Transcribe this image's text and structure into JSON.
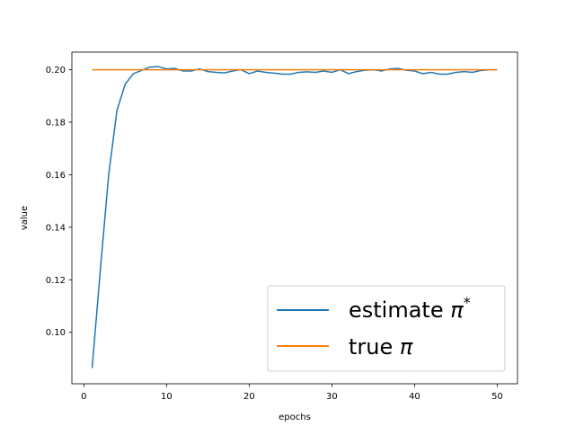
{
  "chart_data": {
    "type": "line",
    "title": "",
    "xlabel": "epochs",
    "ylabel": "value",
    "xlim": [
      -1.45,
      52.45
    ],
    "ylim": [
      0.0804,
      0.2067
    ],
    "xticks": [
      0,
      10,
      20,
      30,
      40,
      50
    ],
    "xtick_labels": [
      "0",
      "10",
      "20",
      "30",
      "40",
      "50"
    ],
    "yticks": [
      0.1,
      0.12,
      0.14,
      0.16,
      0.18,
      0.2
    ],
    "ytick_labels": [
      "0.10",
      "0.12",
      "0.14",
      "0.16",
      "0.18",
      "0.20"
    ],
    "grid": false,
    "legend_position": "lower right",
    "series": [
      {
        "name": "estimate π*",
        "legend_base": "estimate ",
        "legend_symbol": "π",
        "legend_sup": "*",
        "color": "#1f77b4",
        "x": [
          1,
          2,
          3,
          4,
          5,
          6,
          7,
          8,
          9,
          10,
          11,
          12,
          13,
          14,
          15,
          16,
          17,
          18,
          19,
          20,
          21,
          22,
          23,
          24,
          25,
          26,
          27,
          28,
          29,
          30,
          31,
          32,
          33,
          34,
          35,
          36,
          37,
          38,
          39,
          40,
          41,
          42,
          43,
          44,
          45,
          46,
          47,
          48,
          49,
          50
        ],
        "values": [
          0.0864,
          0.124,
          0.16,
          0.1845,
          0.1945,
          0.1985,
          0.1998,
          0.201,
          0.2012,
          0.2003,
          0.2005,
          0.1995,
          0.1995,
          0.2003,
          0.1993,
          0.199,
          0.1988,
          0.1995,
          0.2,
          0.1985,
          0.1995,
          0.199,
          0.1987,
          0.1983,
          0.1983,
          0.199,
          0.1992,
          0.199,
          0.1995,
          0.199,
          0.2,
          0.1985,
          0.1993,
          0.1998,
          0.2,
          0.1995,
          0.2003,
          0.2005,
          0.1998,
          0.1995,
          0.1985,
          0.199,
          0.1983,
          0.1983,
          0.199,
          0.1993,
          0.199,
          0.1997,
          0.2,
          0.2
        ]
      },
      {
        "name": "true π",
        "legend_base": "true ",
        "legend_symbol": "π",
        "legend_sup": "",
        "color": "#ff7f0e",
        "x": [
          1,
          50
        ],
        "values": [
          0.2,
          0.2
        ]
      }
    ]
  }
}
